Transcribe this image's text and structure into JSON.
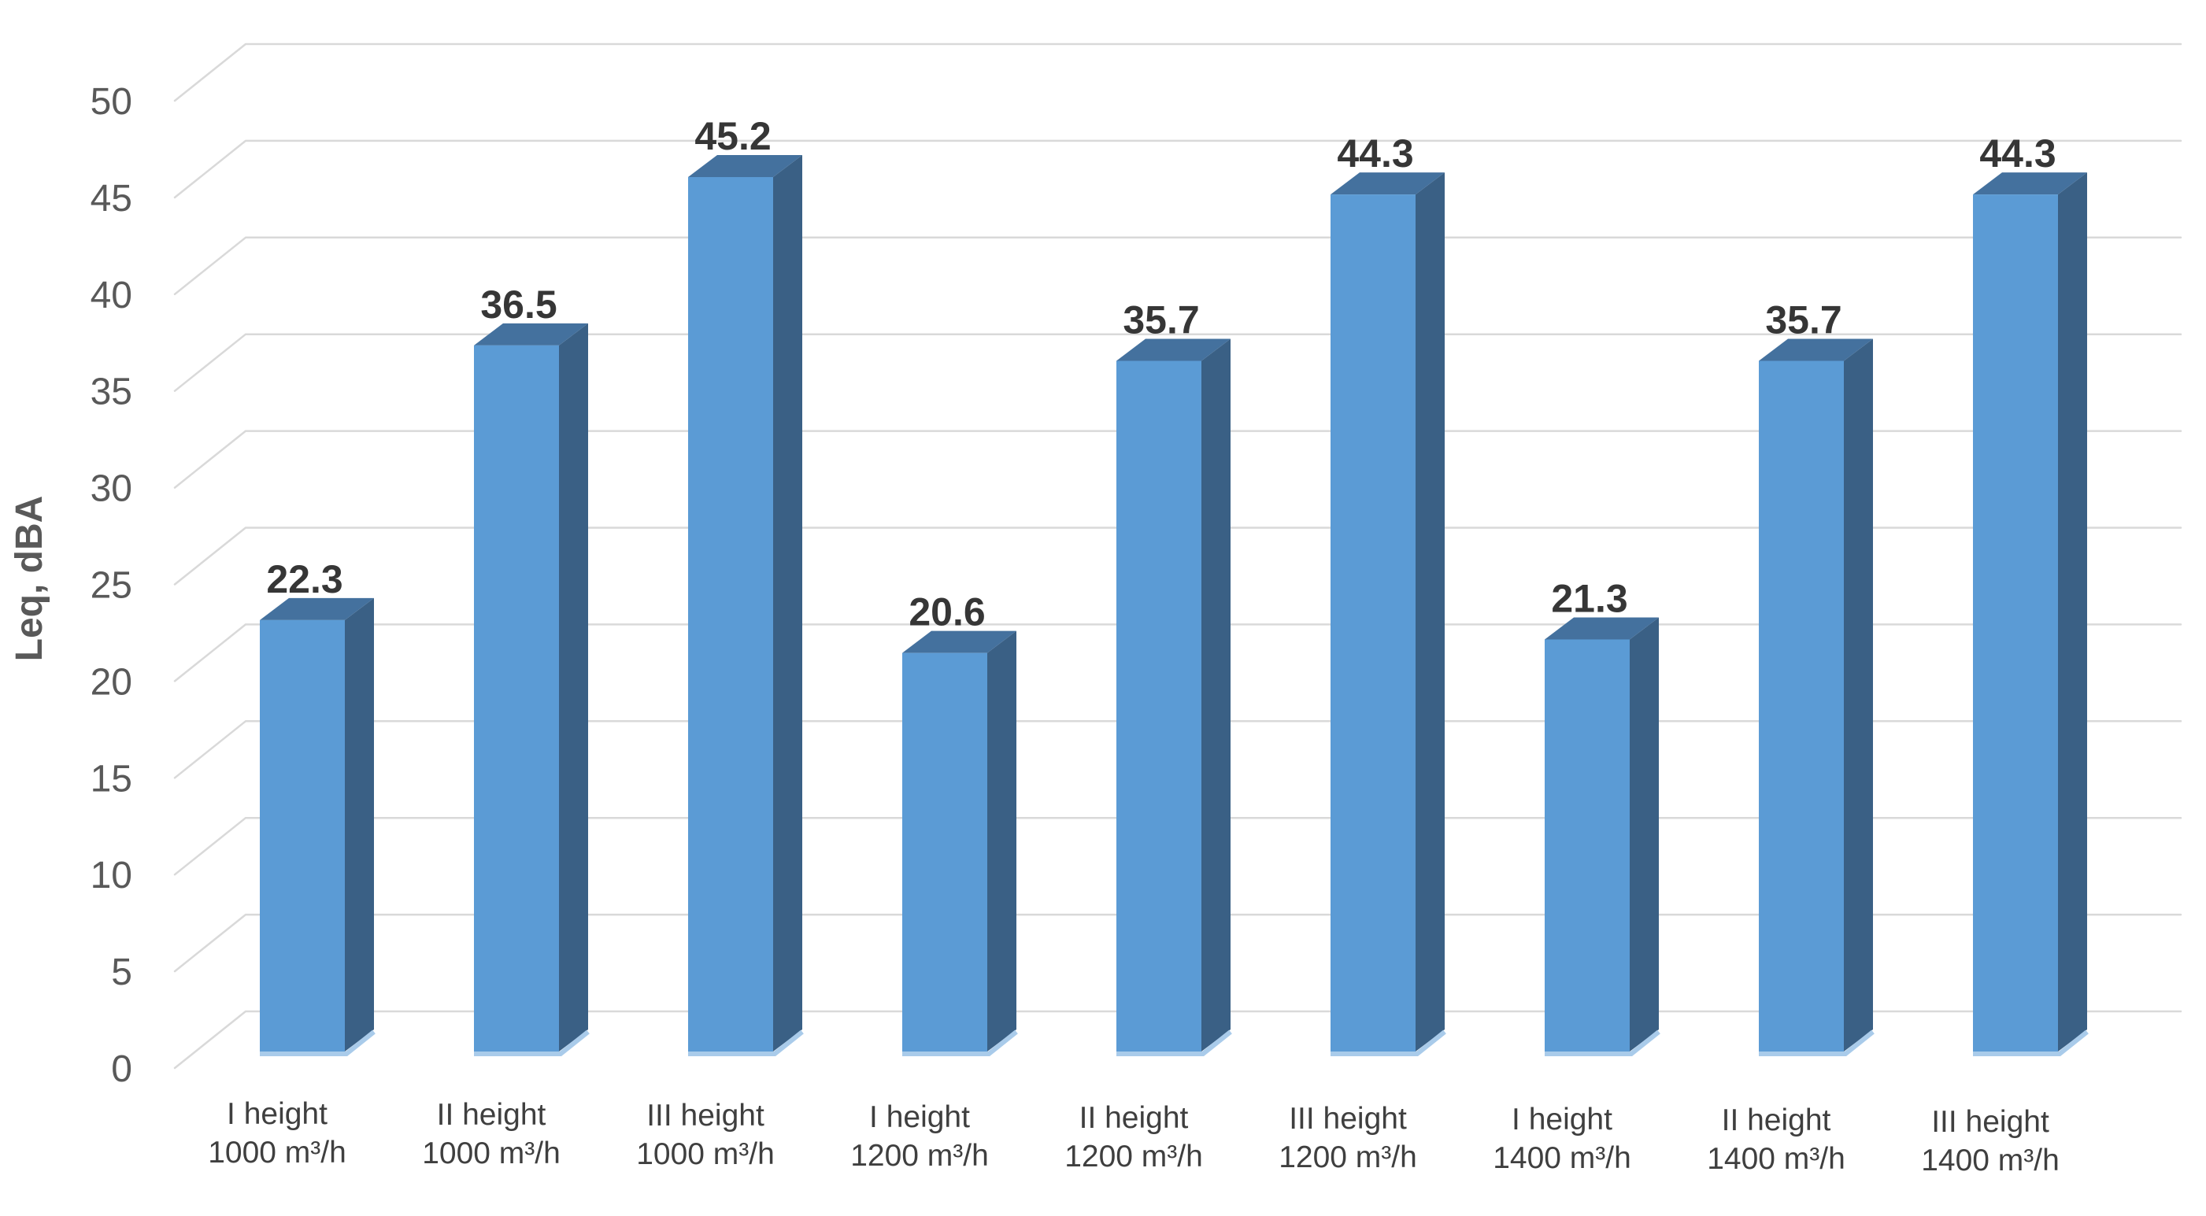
{
  "chart_data": {
    "type": "bar",
    "variant": "3d-column",
    "title": "",
    "xlabel": "",
    "ylabel": "Leq, dBA",
    "ylim": [
      0,
      50
    ],
    "ytick_step": 5,
    "yticks": [
      "0",
      "5",
      "10",
      "15",
      "20",
      "25",
      "30",
      "35",
      "40",
      "45",
      "50"
    ],
    "grid": true,
    "legend_position": "none",
    "categories": [
      {
        "line1": "I height",
        "line2": "1000 m³/h"
      },
      {
        "line1": "II height",
        "line2": "1000 m³/h"
      },
      {
        "line1": "III height",
        "line2": "1000 m³/h"
      },
      {
        "line1": "I height",
        "line2": "1200 m³/h"
      },
      {
        "line1": "II height",
        "line2": "1200 m³/h"
      },
      {
        "line1": "III height",
        "line2": "1200 m³/h"
      },
      {
        "line1": "I height",
        "line2": "1400 m³/h"
      },
      {
        "line1": "II height",
        "line2": "1400 m³/h"
      },
      {
        "line1": "III height",
        "line2": "1400 m³/h"
      }
    ],
    "values": [
      22.3,
      36.5,
      45.2,
      20.6,
      35.7,
      44.3,
      21.3,
      35.7,
      44.3
    ],
    "value_labels": [
      "22.3",
      "36.5",
      "45.2",
      "20.6",
      "35.7",
      "44.3",
      "21.3",
      "35.7",
      "44.3"
    ],
    "colors": {
      "bar_front": "#5B9BD5",
      "bar_top": "#44719E",
      "bar_side": "#3A6085",
      "bar_bottom_edge": "#A9CBEA",
      "gridline": "#D9D9D9",
      "tick_text": "#595959",
      "category_text": "#3F3F3F",
      "value_text": "#363636",
      "axis_title_text": "#595959",
      "background": "#FFFFFF"
    }
  }
}
